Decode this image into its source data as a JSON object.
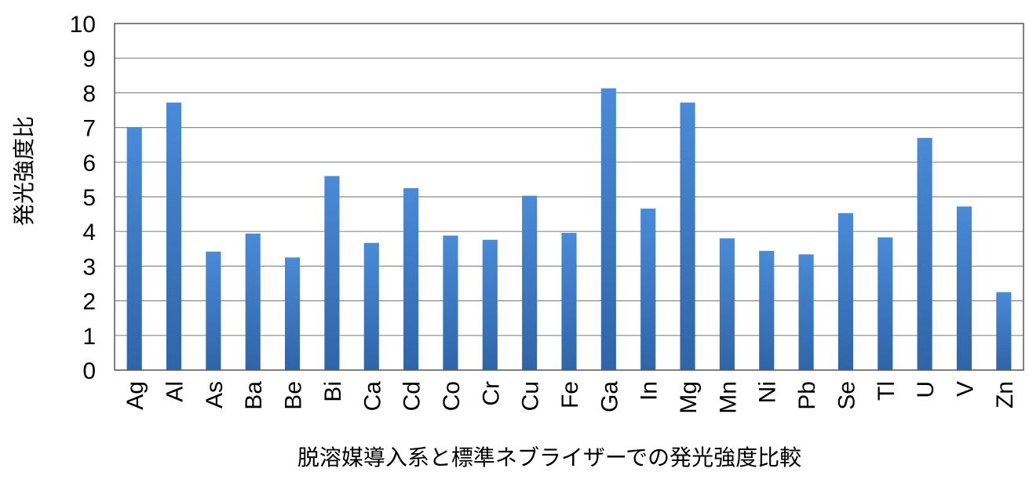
{
  "chart_data": {
    "type": "bar",
    "title": "",
    "xlabel": "脱溶媒導入系と標準ネブライザーでの発光強度比較",
    "ylabel": "発光強度比",
    "ylim": [
      0,
      10
    ],
    "yticks": [
      "0",
      "1",
      "2",
      "3",
      "4",
      "5",
      "6",
      "7",
      "8",
      "9",
      "10"
    ],
    "grid": true,
    "legend": "none",
    "bar_color": "#3f7fcf",
    "categories": [
      "Ag",
      "Al",
      "As",
      "Ba",
      "Be",
      "Bi",
      "Ca",
      "Cd",
      "Co",
      "Cr",
      "Cu",
      "Fe",
      "Ga",
      "In",
      "Mg",
      "Mn",
      "Ni",
      "Pb",
      "Se",
      "Tl",
      "U",
      "V",
      "Zn"
    ],
    "values": [
      7.0,
      7.72,
      3.42,
      3.94,
      3.25,
      5.6,
      3.67,
      5.25,
      3.88,
      3.76,
      5.03,
      3.96,
      8.13,
      4.66,
      7.72,
      3.8,
      3.44,
      3.34,
      4.53,
      3.83,
      6.7,
      4.72,
      2.25
    ]
  }
}
